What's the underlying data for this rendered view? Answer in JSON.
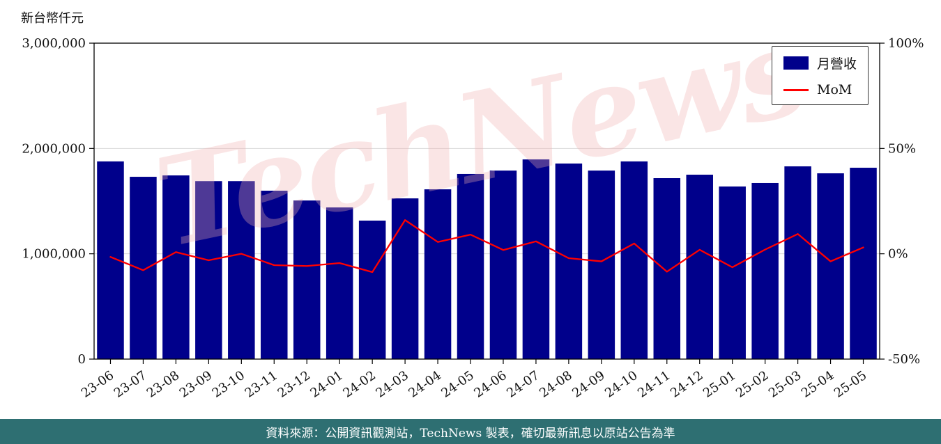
{
  "colors": {
    "bar": "#00008b",
    "line": "#ff0000",
    "watermark": "#f2b0b0",
    "footer_bg": "#2e6f72",
    "grid": "#d8d8d8",
    "axis": "#000000",
    "tick_text": "#111111"
  },
  "chart_data": {
    "type": "bar",
    "title": "",
    "categories": [
      "23-06",
      "23-07",
      "23-08",
      "23-09",
      "23-10",
      "23-11",
      "23-12",
      "24-01",
      "24-02",
      "24-03",
      "24-04",
      "24-05",
      "24-06",
      "24-07",
      "24-08",
      "24-09",
      "24-10",
      "24-11",
      "24-12",
      "25-01",
      "25-02",
      "25-03",
      "25-04",
      "25-05"
    ],
    "series": [
      {
        "name": "月營收",
        "type": "bar",
        "yaxis": "left",
        "color": "#00008b",
        "values": [
          1877000,
          1731000,
          1744000,
          1690000,
          1690000,
          1599000,
          1506000,
          1440000,
          1315000,
          1526000,
          1612000,
          1758000,
          1790000,
          1896000,
          1857000,
          1790000,
          1877000,
          1718000,
          1751000,
          1639000,
          1672000,
          1830000,
          1764000,
          1817000
        ]
      },
      {
        "name": "MoM",
        "type": "line",
        "yaxis": "right",
        "color": "#ff0000",
        "values": [
          -1.5,
          -7.8,
          0.8,
          -3.1,
          0.0,
          -5.4,
          -5.8,
          -4.4,
          -8.7,
          16.0,
          5.6,
          9.1,
          1.8,
          5.9,
          -2.1,
          -3.6,
          4.9,
          -8.5,
          1.9,
          -6.4,
          2.0,
          9.4,
          -3.6,
          3.0
        ]
      }
    ],
    "left_axis": {
      "label": "新台幣仟元",
      "min": 0,
      "max": 3000000,
      "ticks": [
        {
          "value": 3000000,
          "label": "3,000,000"
        },
        {
          "value": 2000000,
          "label": "2,000,000"
        },
        {
          "value": 1000000,
          "label": "1,000,000"
        },
        {
          "value": 0,
          "label": "0"
        }
      ]
    },
    "right_axis": {
      "label": "",
      "min": -50,
      "max": 100,
      "ticks": [
        {
          "value": 100,
          "label": "100%"
        },
        {
          "value": 50,
          "label": "50%"
        },
        {
          "value": 0,
          "label": "0%"
        },
        {
          "value": -50,
          "label": "-50%"
        }
      ]
    },
    "legend": {
      "position": "top-right",
      "entries": [
        "月營收",
        "MoM"
      ]
    },
    "grid": true,
    "watermark": "TechNews"
  },
  "footer": {
    "text": "資料來源：公開資訊觀測站，TechNews 製表，確切最新訊息以原站公告為準"
  }
}
